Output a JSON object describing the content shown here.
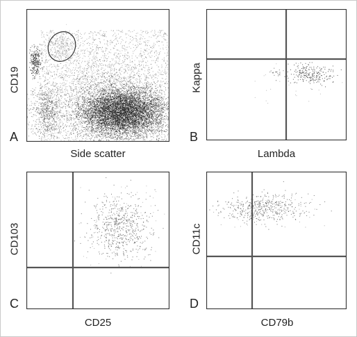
{
  "figure": {
    "panels": [
      {
        "id": "A",
        "letter": "A",
        "xlabel": "Side scatter",
        "ylabel": "CD19"
      },
      {
        "id": "B",
        "letter": "B",
        "xlabel": "Lambda",
        "ylabel": "Kappa"
      },
      {
        "id": "C",
        "letter": "C",
        "xlabel": "CD25",
        "ylabel": "CD103"
      },
      {
        "id": "D",
        "letter": "D",
        "xlabel": "CD79b",
        "ylabel": "CD11c"
      }
    ]
  },
  "colors": {
    "frame": "#333333",
    "quadrant": "#555555",
    "dots": "#1a1a1a",
    "gate": "#333333"
  }
}
